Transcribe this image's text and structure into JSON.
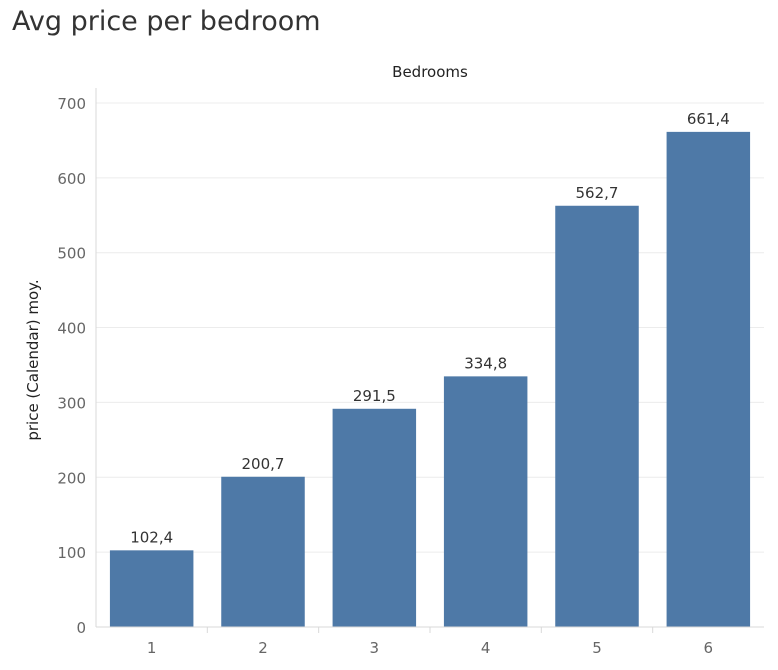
{
  "title": "Avg price per bedroom",
  "chart_data": {
    "type": "bar",
    "title": "Avg price per bedroom",
    "xlabel": "Bedrooms",
    "ylabel": "price (Calendar) moy.",
    "categories": [
      "1",
      "2",
      "3",
      "4",
      "5",
      "6"
    ],
    "values": [
      102.4,
      200.7,
      291.5,
      334.8,
      562.7,
      661.4
    ],
    "data_labels": [
      "102,4",
      "200,7",
      "291,5",
      "334,8",
      "562,7",
      "661,4"
    ],
    "yticks": [
      0,
      100,
      200,
      300,
      400,
      500,
      600,
      700
    ],
    "ylim": [
      0,
      720
    ],
    "grid": true,
    "bar_color": "#4e79a7"
  }
}
